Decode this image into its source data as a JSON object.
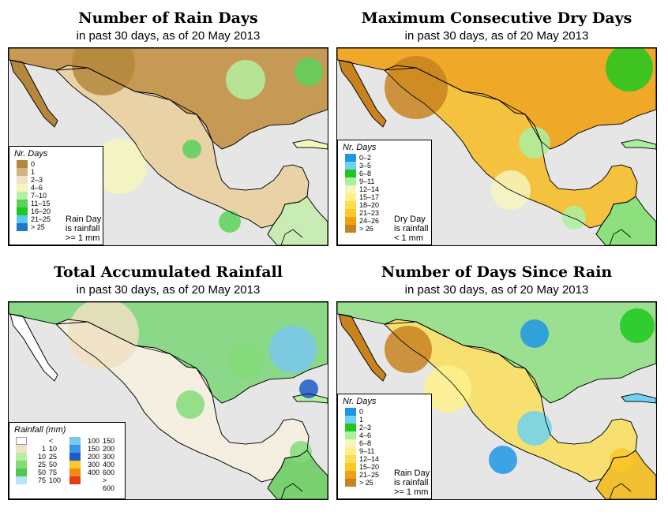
{
  "panels": {
    "rain_days": {
      "title": "Number of Rain Days",
      "subtitle": "in past 30 days, as of  20 May 2013",
      "legend_title": "Nr. Days",
      "legend": [
        {
          "label": "0",
          "color": "#b4873c"
        },
        {
          "label": "1",
          "color": "#d2b482"
        },
        {
          "label": "2–3",
          "color": "#f0e1c3"
        },
        {
          "label": "4–6",
          "color": "#f5f5bc"
        },
        {
          "label": "7–10",
          "color": "#b4f0a0"
        },
        {
          "label": "11–15",
          "color": "#5ad25a"
        },
        {
          "label": "16–20",
          "color": "#1ec81e"
        },
        {
          "label": "21–25",
          "color": "#5ac8f0"
        },
        {
          "label": "> 25",
          "color": "#1e78c8"
        }
      ],
      "note": [
        "Rain Day",
        "is rainfall",
        ">= 1 mm"
      ]
    },
    "dry_days": {
      "title": "Maximum Consecutive Dry Days",
      "subtitle": "in past 30 days, as of  20 May 2013",
      "legend_title": "Nr. Days",
      "legend": [
        {
          "label": "0–2",
          "color": "#1e96e6"
        },
        {
          "label": "3–5",
          "color": "#6ed2f0"
        },
        {
          "label": "6–8",
          "color": "#1ec81e"
        },
        {
          "label": "9–11",
          "color": "#aaf0a0"
        },
        {
          "label": "12–14",
          "color": "#f5f5bc"
        },
        {
          "label": "15–17",
          "color": "#fff08c"
        },
        {
          "label": "18–20",
          "color": "#ffdc50"
        },
        {
          "label": "21–23",
          "color": "#fac828"
        },
        {
          "label": "24–26",
          "color": "#f0a014"
        },
        {
          "label": "> 26",
          "color": "#c8821e"
        }
      ],
      "note": [
        "Dry Day",
        "is rainfall",
        "< 1 mm"
      ]
    },
    "total_rain": {
      "title": "Total Accumulated Rainfall",
      "subtitle": "in past 30 days, as of  20 May 2013",
      "legend_title": "Rainfall (mm)",
      "legend_left": [
        {
          "a": "",
          "b": "< 1",
          "color": "#ffffff"
        },
        {
          "a": "1",
          "b": "10",
          "color": "#f0e1c3"
        },
        {
          "a": "10",
          "b": "25",
          "color": "#b4f0a0"
        },
        {
          "a": "25",
          "b": "50",
          "color": "#82dc78"
        },
        {
          "a": "50",
          "b": "75",
          "color": "#50c850"
        },
        {
          "a": "75",
          "b": "100",
          "color": "#b4e6fa"
        }
      ],
      "legend_right": [
        {
          "a": "100",
          "b": "150",
          "color": "#78c8f0"
        },
        {
          "a": "150",
          "b": "200",
          "color": "#3c96e6"
        },
        {
          "a": "200",
          "b": "300",
          "color": "#1e5ac8"
        },
        {
          "a": "300",
          "b": "400",
          "color": "#fac828"
        },
        {
          "a": "400",
          "b": "600",
          "color": "#f08c14"
        },
        {
          "a": "",
          "b": "> 600",
          "color": "#e63c14"
        }
      ]
    },
    "since_rain": {
      "title": "Number of Days Since Rain",
      "subtitle": "in past 30 days, as of  20 May 2013",
      "legend_title": "Nr. Days",
      "legend": [
        {
          "label": "0",
          "color": "#1e96e6"
        },
        {
          "label": "1",
          "color": "#6ed2f0"
        },
        {
          "label": "2–3",
          "color": "#1ec81e"
        },
        {
          "label": "4–6",
          "color": "#aaf0a0"
        },
        {
          "label": "6–8",
          "color": "#f5f5bc"
        },
        {
          "label": "9–11",
          "color": "#fff08c"
        },
        {
          "label": "12–14",
          "color": "#ffdc50"
        },
        {
          "label": "15–20",
          "color": "#fac828"
        },
        {
          "label": "21–25",
          "color": "#f0a014"
        },
        {
          "label": "> 25",
          "color": "#c8821e"
        }
      ],
      "note": [
        "Rain Day",
        "is rainfall",
        ">= 1 mm"
      ]
    }
  },
  "colors": {
    "ocean": "#e6e6e6",
    "border": "#000000"
  }
}
